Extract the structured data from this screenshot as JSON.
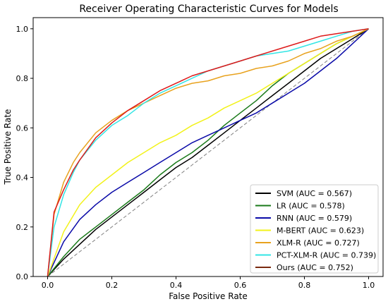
{
  "chart_data": {
    "type": "line",
    "title": "Receiver Operating Characteristic Curves for Models",
    "xlabel": "False Positive Rate",
    "ylabel": "True Positive Rate",
    "xlim": [
      0.0,
      1.0
    ],
    "ylim": [
      0.0,
      1.0
    ],
    "xticks": [
      "0.0",
      "0.2",
      "0.4",
      "0.6",
      "0.8",
      "1.0"
    ],
    "yticks": [
      "0.0",
      "0.2",
      "0.4",
      "0.6",
      "0.8",
      "1.0"
    ],
    "legend_position": "lower-right",
    "reference_line": {
      "x": [
        0,
        1
      ],
      "y": [
        0,
        1
      ],
      "style": "dashed",
      "color": "#808080"
    },
    "series": [
      {
        "name": "SVM (AUC = 0.567)",
        "color": "#000000",
        "x": [
          0,
          0.05,
          0.1,
          0.15,
          0.2,
          0.25,
          0.3,
          0.35,
          0.4,
          0.45,
          0.5,
          0.55,
          0.6,
          0.65,
          0.7,
          0.75,
          0.8,
          0.85,
          0.9,
          0.95,
          1.0
        ],
        "y": [
          0,
          0.07,
          0.13,
          0.19,
          0.24,
          0.29,
          0.34,
          0.39,
          0.44,
          0.48,
          0.53,
          0.58,
          0.63,
          0.68,
          0.73,
          0.78,
          0.83,
          0.88,
          0.92,
          0.96,
          1.0
        ]
      },
      {
        "name": "LR (AUC = 0.578)",
        "color": "#1a7a1a",
        "x": [
          0,
          0.05,
          0.1,
          0.15,
          0.2,
          0.25,
          0.3,
          0.35,
          0.4,
          0.45,
          0.5,
          0.55,
          0.6,
          0.65,
          0.7,
          0.75,
          0.8,
          0.85,
          0.9,
          0.95,
          1.0
        ],
        "y": [
          0,
          0.08,
          0.15,
          0.2,
          0.25,
          0.3,
          0.35,
          0.41,
          0.46,
          0.5,
          0.55,
          0.61,
          0.66,
          0.71,
          0.77,
          0.82,
          0.86,
          0.9,
          0.94,
          0.97,
          1.0
        ]
      },
      {
        "name": "RNN (AUC = 0.579)",
        "color": "#0a0aa8",
        "x": [
          0,
          0.05,
          0.1,
          0.15,
          0.2,
          0.25,
          0.3,
          0.35,
          0.4,
          0.45,
          0.5,
          0.55,
          0.6,
          0.65,
          0.7,
          0.75,
          0.8,
          0.85,
          0.9,
          0.95,
          1.0
        ],
        "y": [
          0,
          0.14,
          0.23,
          0.29,
          0.34,
          0.38,
          0.42,
          0.46,
          0.5,
          0.54,
          0.57,
          0.6,
          0.63,
          0.66,
          0.7,
          0.74,
          0.78,
          0.83,
          0.88,
          0.94,
          1.0
        ]
      },
      {
        "name": "M-BERT (AUC = 0.623)",
        "color": "#f2f21a",
        "x": [
          0,
          0.05,
          0.1,
          0.15,
          0.2,
          0.25,
          0.3,
          0.35,
          0.4,
          0.45,
          0.5,
          0.55,
          0.6,
          0.65,
          0.7,
          0.75,
          0.8,
          0.85,
          0.9,
          0.95,
          1.0
        ],
        "y": [
          0,
          0.18,
          0.29,
          0.36,
          0.41,
          0.46,
          0.5,
          0.54,
          0.57,
          0.61,
          0.64,
          0.68,
          0.71,
          0.74,
          0.78,
          0.82,
          0.86,
          0.9,
          0.94,
          0.97,
          1.0
        ]
      },
      {
        "name": "XLM-R (AUC = 0.727)",
        "color": "#e8a21e",
        "x": [
          0,
          0.02,
          0.05,
          0.08,
          0.1,
          0.15,
          0.2,
          0.25,
          0.3,
          0.35,
          0.4,
          0.45,
          0.5,
          0.55,
          0.6,
          0.65,
          0.7,
          0.75,
          0.8,
          0.85,
          0.9,
          0.95,
          1.0
        ],
        "y": [
          0,
          0.25,
          0.38,
          0.46,
          0.5,
          0.58,
          0.63,
          0.67,
          0.7,
          0.73,
          0.76,
          0.78,
          0.79,
          0.81,
          0.82,
          0.84,
          0.85,
          0.87,
          0.9,
          0.92,
          0.95,
          0.97,
          1.0
        ]
      },
      {
        "name": "PCT-XLM-R (AUC = 0.739)",
        "color": "#33e5e5",
        "x": [
          0,
          0.02,
          0.05,
          0.08,
          0.1,
          0.15,
          0.2,
          0.25,
          0.3,
          0.35,
          0.4,
          0.45,
          0.5,
          0.55,
          0.6,
          0.65,
          0.7,
          0.75,
          0.8,
          0.85,
          0.9,
          0.95,
          1.0
        ],
        "y": [
          0,
          0.2,
          0.33,
          0.42,
          0.47,
          0.55,
          0.61,
          0.65,
          0.7,
          0.74,
          0.77,
          0.8,
          0.83,
          0.85,
          0.87,
          0.89,
          0.9,
          0.91,
          0.93,
          0.95,
          0.97,
          0.99,
          1.0
        ]
      },
      {
        "name": "Ours (AUC = 0.752)",
        "color": "#dd1a1a",
        "x": [
          0,
          0.02,
          0.05,
          0.08,
          0.1,
          0.15,
          0.2,
          0.25,
          0.3,
          0.35,
          0.4,
          0.45,
          0.5,
          0.55,
          0.6,
          0.65,
          0.7,
          0.75,
          0.8,
          0.85,
          0.9,
          0.95,
          1.0
        ],
        "y": [
          0,
          0.26,
          0.35,
          0.43,
          0.47,
          0.56,
          0.62,
          0.67,
          0.71,
          0.75,
          0.78,
          0.81,
          0.83,
          0.85,
          0.87,
          0.89,
          0.91,
          0.93,
          0.95,
          0.97,
          0.98,
          0.99,
          1.0
        ]
      }
    ],
    "legend_order": [
      0,
      1,
      2,
      3,
      4,
      5,
      6
    ],
    "legend_color_overrides": {
      "6": "#7a2a10"
    }
  }
}
